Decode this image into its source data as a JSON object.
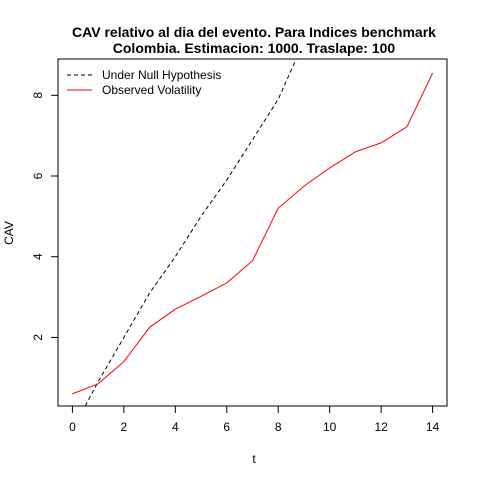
{
  "chart_data": {
    "type": "line",
    "title": [
      "CAV relativo al dia del evento. Para Indices benchmark",
      "Colombia. Estimacion: 1000. Traslape: 100"
    ],
    "xlabel": "t",
    "ylabel": "CAV",
    "xlim": [
      -0.56,
      14.56
    ],
    "ylim": [
      0.3,
      8.9
    ],
    "x_ticks": [
      0,
      2,
      4,
      6,
      8,
      10,
      12,
      14
    ],
    "y_ticks": [
      2,
      4,
      6,
      8
    ],
    "grid": false,
    "legend_position": "top-left",
    "series": [
      {
        "name": "Under Null Hypothesis",
        "color": "#000000",
        "style": "dashed",
        "x": [
          0.5,
          1,
          2,
          3,
          4,
          5,
          6,
          7,
          8,
          8.7
        ],
        "y": [
          0.3,
          0.9,
          2.0,
          3.1,
          4.0,
          5.0,
          5.9,
          6.9,
          7.9,
          8.9
        ]
      },
      {
        "name": "Observed Volatility",
        "color": "#ff0000",
        "style": "solid",
        "x": [
          0,
          1,
          2,
          3,
          4,
          5,
          6,
          7,
          8,
          9,
          10,
          11,
          12,
          13,
          14
        ],
        "y": [
          0.6,
          0.85,
          1.4,
          2.25,
          2.7,
          3.02,
          3.35,
          3.9,
          5.2,
          5.75,
          6.2,
          6.6,
          6.82,
          7.22,
          8.55
        ]
      }
    ]
  }
}
